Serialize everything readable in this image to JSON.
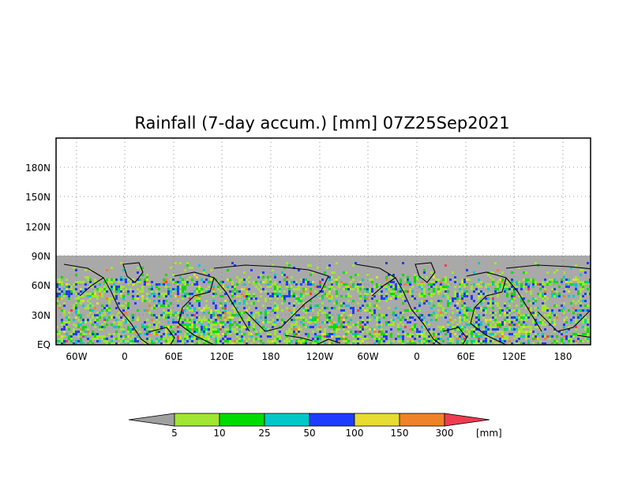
{
  "title": "Rainfall (7-day accum.) [mm] 07Z25Sep2021",
  "map": {
    "y_axis_labels": [
      "EQ",
      "30N",
      "60N",
      "90N",
      "120N",
      "150N",
      "180N"
    ],
    "x_axis_labels": [
      "60W",
      "0",
      "60E",
      "120E",
      "180",
      "120W",
      "60W",
      "0",
      "60E",
      "120E",
      "180"
    ],
    "no_data_color": "#a9a9a9",
    "land_shading": "gray regions with scattered precipitation colors",
    "grid": "dotted"
  },
  "colorbar": {
    "tick_labels": [
      "5",
      "10",
      "25",
      "50",
      "100",
      "150",
      "300"
    ],
    "unit": "[mm]",
    "colors": [
      "#a0a0a0",
      "#a0e632",
      "#00dc00",
      "#00c8c8",
      "#1e3cff",
      "#e6dc32",
      "#f08228",
      "#f03c50"
    ]
  }
}
